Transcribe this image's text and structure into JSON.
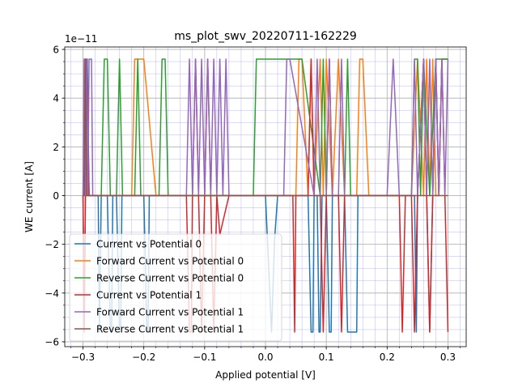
{
  "chart_data": {
    "type": "line",
    "title": "ms_plot_swv_20220711-162229",
    "xlabel": "Applied potential [V]",
    "ylabel": "WE current [A]",
    "y_offset_label": "1e−11",
    "xlim": [
      -0.33,
      0.33
    ],
    "ylim": [
      -6.2e-11,
      6.1e-11
    ],
    "x_ticks": [
      -0.3,
      -0.2,
      -0.1,
      0.0,
      0.1,
      0.2,
      0.3
    ],
    "x_tick_labels": [
      "−0.3",
      "−0.2",
      "−0.1",
      "0.0",
      "0.1",
      "0.2",
      "0.3"
    ],
    "y_ticks": [
      -6,
      -4,
      -2,
      0,
      2,
      4,
      6
    ],
    "y_tick_labels": [
      "−6",
      "−4",
      "−2",
      "0",
      "2",
      "4",
      "6"
    ],
    "y_tick_scale": 1e-11,
    "grid": "major and minor",
    "legend_position": "lower-left",
    "series": [
      {
        "name": "Current vs Potential 0",
        "color": "#1f77b4",
        "x": [
          -0.3,
          -0.298,
          -0.296,
          -0.295,
          -0.293,
          -0.29,
          -0.28,
          -0.275,
          -0.273,
          -0.27,
          -0.26,
          -0.255,
          -0.253,
          -0.251,
          -0.245,
          -0.24,
          -0.238,
          -0.236,
          -0.23,
          -0.2,
          -0.195,
          -0.193,
          -0.191,
          -0.18,
          0.0,
          0.01,
          0.015,
          0.02,
          0.025,
          0.07,
          0.075,
          0.078,
          0.08,
          0.085,
          0.088,
          0.09,
          0.093,
          0.1,
          0.105,
          0.108,
          0.11,
          0.13,
          0.135,
          0.15,
          0.152,
          0.16,
          0.2,
          0.22,
          0.245,
          0.248,
          0.25,
          0.26,
          0.265,
          0.27,
          0.275,
          0.28,
          0.285,
          0.29,
          0.3
        ],
        "y": [
          0,
          -5.6e-11,
          0,
          5.6e-11,
          5.6e-11,
          0,
          0,
          0,
          -5.6e-11,
          0,
          0,
          -5.6e-11,
          -5.6e-11,
          0,
          0,
          -5.6e-11,
          -5.6e-11,
          0,
          0,
          0,
          -5.6e-11,
          -5.6e-11,
          0,
          0,
          0,
          -5.6e-11,
          -1.8e-11,
          0,
          0,
          0,
          -5.6e-11,
          -5.6e-11,
          0,
          0,
          -5.6e-11,
          -5.6e-11,
          0,
          0,
          -5.6e-11,
          -5.6e-11,
          0,
          0,
          -5.6e-11,
          -5.6e-11,
          0,
          0,
          0,
          0,
          0,
          -5.6e-11,
          0,
          5.6e-11,
          0,
          -5.6e-11,
          0,
          5.6e-11,
          0,
          5.6e-11,
          5.6e-11
        ]
      },
      {
        "name": "Forward Current vs Potential 0",
        "color": "#ff7f0e",
        "x": [
          -0.3,
          -0.298,
          -0.296,
          -0.294,
          -0.29,
          -0.22,
          -0.215,
          -0.2,
          -0.18,
          -0.17,
          0.05,
          0.055,
          0.06,
          0.07,
          0.075,
          0.08,
          0.09,
          0.095,
          0.1,
          0.11,
          0.12,
          0.13,
          0.15,
          0.155,
          0.16,
          0.17,
          0.2,
          0.21,
          0.22,
          0.225,
          0.24,
          0.25,
          0.26,
          0.265,
          0.27,
          0.275,
          0.28,
          0.285,
          0.29,
          0.3
        ],
        "y": [
          0,
          5.6e-11,
          5.6e-11,
          0,
          0,
          0,
          5.6e-11,
          5.6e-11,
          0,
          0,
          0,
          5.6e-11,
          5.6e-11,
          0,
          5.6e-11,
          0,
          5.6e-11,
          0,
          5.6e-11,
          0,
          5.6e-11,
          0,
          0,
          5.6e-11,
          5.6e-11,
          0,
          0,
          0,
          0,
          0,
          0,
          5.6e-11,
          0,
          5.6e-11,
          0,
          5.6e-11,
          0,
          0,
          5.6e-11,
          5.6e-11
        ]
      },
      {
        "name": "Reverse Current vs Potential 0",
        "color": "#2ca02c",
        "x": [
          -0.3,
          -0.27,
          -0.265,
          -0.26,
          -0.255,
          -0.245,
          -0.24,
          -0.235,
          -0.215,
          -0.21,
          -0.205,
          -0.175,
          -0.17,
          -0.165,
          -0.16,
          -0.02,
          -0.015,
          -0.01,
          0.02,
          0.04,
          0.06,
          0.09,
          0.095,
          0.1,
          0.13,
          0.135,
          0.14,
          0.2,
          0.24,
          0.245,
          0.25,
          0.255,
          0.26,
          0.27,
          0.28,
          0.3
        ],
        "y": [
          0,
          0,
          5.6e-11,
          5.6e-11,
          0,
          0,
          5.6e-11,
          0,
          0,
          5.6e-11,
          0,
          0,
          5.6e-11,
          5.6e-11,
          0,
          0,
          5.6e-11,
          5.6e-11,
          5.6e-11,
          5.6e-11,
          5.6e-11,
          0,
          5.6e-11,
          0,
          0,
          5.6e-11,
          0,
          0,
          0,
          5.6e-11,
          5.6e-11,
          0,
          5.6e-11,
          0,
          5.6e-11,
          5.6e-11
        ]
      },
      {
        "name": "Current vs Potential 1",
        "color": "#d62728",
        "x": [
          -0.3,
          -0.298,
          -0.296,
          -0.294,
          -0.29,
          -0.13,
          -0.125,
          -0.122,
          -0.12,
          -0.115,
          -0.11,
          -0.105,
          -0.1,
          -0.095,
          -0.09,
          -0.085,
          -0.08,
          -0.075,
          -0.06,
          0.02,
          0.025,
          0.045,
          0.048,
          0.05,
          0.06,
          0.07,
          0.075,
          0.08,
          0.09,
          0.095,
          0.1,
          0.105,
          0.11,
          0.12,
          0.125,
          0.13,
          0.14,
          0.22,
          0.225,
          0.23,
          0.24,
          0.245,
          0.25,
          0.26,
          0.265,
          0.27,
          0.275,
          0.28,
          0.285,
          0.29,
          0.295,
          0.3
        ],
        "y": [
          0,
          -5.6e-11,
          0,
          5.6e-11,
          0,
          0,
          -5.6e-11,
          -5.6e-11,
          0,
          5.6e-11,
          0,
          -5.6e-11,
          0,
          5.6e-11,
          0,
          -5.6e-11,
          0,
          -1.6e-11,
          0,
          0,
          0,
          0,
          -5.6e-11,
          0,
          0,
          0,
          5.6e-11,
          0,
          0,
          -5.6e-11,
          0,
          5.6e-11,
          0,
          0,
          -5.6e-11,
          0,
          0,
          0,
          -5.6e-11,
          0,
          0,
          -5.6e-11,
          0,
          5.6e-11,
          0,
          -5.6e-11,
          0,
          5.6e-11,
          0,
          5.6e-11,
          0,
          -5.6e-11
        ]
      },
      {
        "name": "Forward Current vs Potential 1",
        "color": "#9467bd",
        "x": [
          -0.3,
          -0.298,
          -0.296,
          -0.294,
          -0.292,
          -0.29,
          -0.288,
          -0.286,
          -0.284,
          -0.28,
          -0.13,
          -0.125,
          -0.12,
          -0.115,
          -0.11,
          -0.105,
          -0.1,
          -0.095,
          -0.09,
          -0.085,
          -0.08,
          -0.075,
          -0.07,
          -0.065,
          -0.06,
          0.03,
          0.035,
          0.04,
          0.08,
          0.085,
          0.09,
          0.1,
          0.105,
          0.11,
          0.12,
          0.125,
          0.13,
          0.2,
          0.21,
          0.22,
          0.24,
          0.245,
          0.25,
          0.26,
          0.265,
          0.27,
          0.275,
          0.28,
          0.285,
          0.29,
          0.295,
          0.3
        ],
        "y": [
          0,
          5.6e-11,
          0,
          5.6e-11,
          0,
          5.6e-11,
          5.6e-11,
          5.6e-11,
          0,
          0,
          0,
          5.6e-11,
          0,
          5.6e-11,
          0,
          5.6e-11,
          0,
          5.6e-11,
          0,
          5.6e-11,
          0,
          5.6e-11,
          0,
          5.6e-11,
          0,
          0,
          5.6e-11,
          5.6e-11,
          0,
          5.6e-11,
          0,
          0,
          5.6e-11,
          0,
          0,
          5.6e-11,
          0,
          0,
          5.6e-11,
          0,
          0,
          5.6e-11,
          0,
          5.6e-11,
          0,
          5.6e-11,
          0,
          5.6e-11,
          0,
          5.6e-11,
          0,
          5.6e-11
        ]
      },
      {
        "name": "Reverse Current vs Potential 1",
        "color": "#8c564b",
        "x": [
          -0.3,
          -0.298,
          -0.296,
          -0.294,
          -0.29,
          -0.28,
          -0.2,
          -0.15,
          -0.1,
          -0.05,
          0.0,
          0.05,
          0.1,
          0.15,
          0.2,
          0.25,
          0.3
        ],
        "y": [
          0,
          0,
          5.6e-11,
          0,
          0,
          0,
          0,
          0,
          0,
          0,
          0,
          0,
          0,
          0,
          0,
          0,
          0
        ]
      }
    ]
  }
}
